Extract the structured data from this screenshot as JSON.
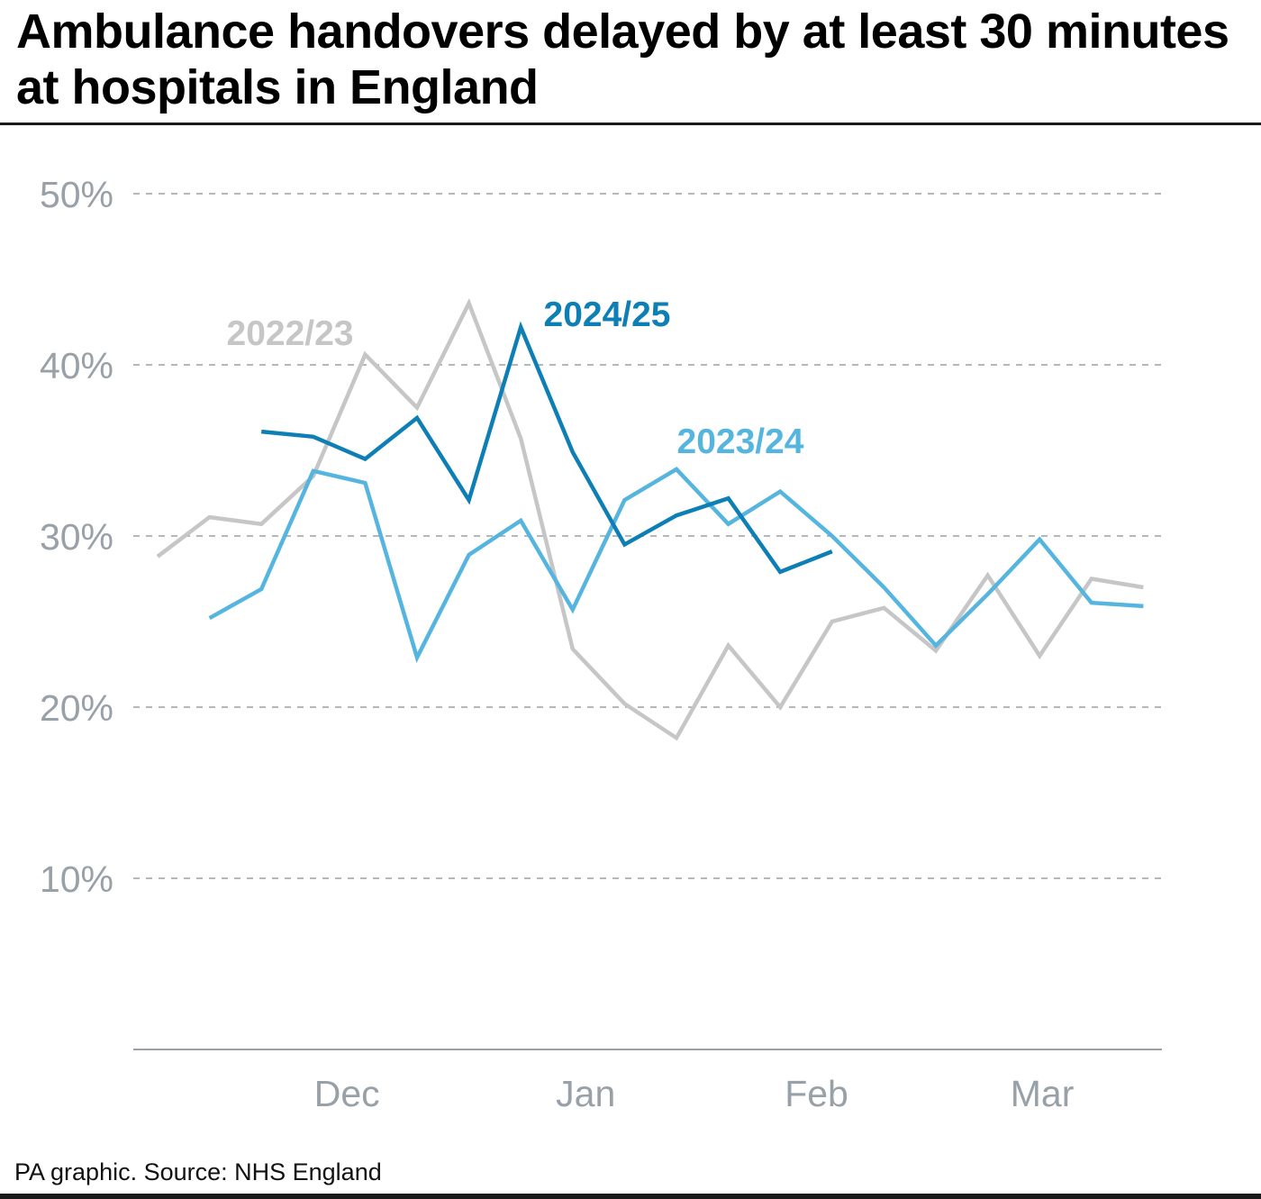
{
  "title": "Ambulance handovers delayed by at least 30 minutes at hospitals in England",
  "footer": "PA graphic. Source: NHS England",
  "chart_data": {
    "type": "line",
    "title": "Ambulance handovers delayed by at least 30 minutes at hospitals in England",
    "xlabel": "",
    "ylabel": "",
    "ylim": [
      0,
      50
    ],
    "y_ticks": [
      10,
      20,
      30,
      40,
      50
    ],
    "y_tick_labels": [
      "10%",
      "20%",
      "30%",
      "40%",
      "50%"
    ],
    "x_ticks": [
      3.65,
      8.25,
      12.7,
      17.05
    ],
    "x_tick_labels": [
      "Dec",
      "Jan",
      "Feb",
      "Mar"
    ],
    "xlim": [
      -0.5,
      20
    ],
    "grid": true,
    "series": [
      {
        "name": "2022/23",
        "color": "#c6c6c6",
        "x": [
          0,
          1,
          2,
          3,
          4,
          5,
          6,
          7,
          8,
          9,
          10,
          11,
          12,
          13,
          14,
          15,
          16,
          17,
          18,
          19
        ],
        "values": [
          28.8,
          31.1,
          30.7,
          33.5,
          40.6,
          37.5,
          43.6,
          35.7,
          23.4,
          20.2,
          18.2,
          23.6,
          20.0,
          25.0,
          25.8,
          23.3,
          27.7,
          23.0,
          27.5,
          27.0
        ]
      },
      {
        "name": "2023/24",
        "color": "#55b5df",
        "x": [
          1,
          2,
          3,
          4,
          5,
          6,
          7,
          8,
          9,
          10,
          11,
          12,
          13,
          14,
          15,
          16,
          17,
          18,
          19
        ],
        "values": [
          25.2,
          26.9,
          33.8,
          33.1,
          22.9,
          28.9,
          30.9,
          25.7,
          32.1,
          33.9,
          30.7,
          32.6,
          30.0,
          27.0,
          23.6,
          26.6,
          29.8,
          26.1,
          25.9
        ]
      },
      {
        "name": "2024/25",
        "color": "#0e7fb5",
        "x": [
          2,
          3,
          4,
          5,
          6,
          7,
          8,
          9,
          10,
          11,
          12,
          13
        ],
        "values": [
          36.1,
          35.8,
          34.5,
          36.9,
          32.1,
          42.2,
          34.9,
          29.5,
          31.2,
          32.2,
          27.9,
          29.1
        ]
      }
    ],
    "annotations": [
      {
        "text": "2022/23",
        "series": "2022/23",
        "color": "#c6c6c6"
      },
      {
        "text": "2024/25",
        "series": "2024/25",
        "color": "#0e7fb5"
      },
      {
        "text": "2023/24",
        "series": "2023/24",
        "color": "#55b5df"
      }
    ]
  }
}
